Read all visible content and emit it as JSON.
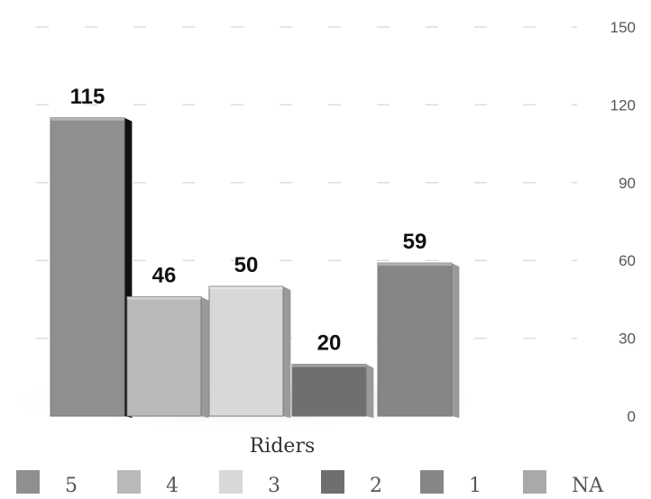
{
  "chart_data": {
    "type": "bar",
    "categories": [
      "5",
      "4",
      "3",
      "2",
      "1"
    ],
    "values": [
      115,
      46,
      50,
      20,
      59
    ],
    "data_labels": [
      "115",
      "46",
      "50",
      "20",
      "59"
    ],
    "title": "",
    "xlabel": "Riders",
    "ylabel": "",
    "ylim": [
      0,
      150
    ],
    "yticks": [
      "0",
      "30",
      "60",
      "90",
      "120",
      "150"
    ],
    "y_axis_position": "right",
    "grid": true,
    "legend": {
      "placement": "bottom",
      "entries": [
        "5",
        "4",
        "3",
        "2",
        "1",
        "NA"
      ]
    },
    "colors": {
      "5": "#8f8f8f",
      "4": "#b9b9b9",
      "3": "#d8d8d8",
      "2": "#6f6f6f",
      "1": "#868686",
      "NA": "#a9a9a9"
    }
  }
}
